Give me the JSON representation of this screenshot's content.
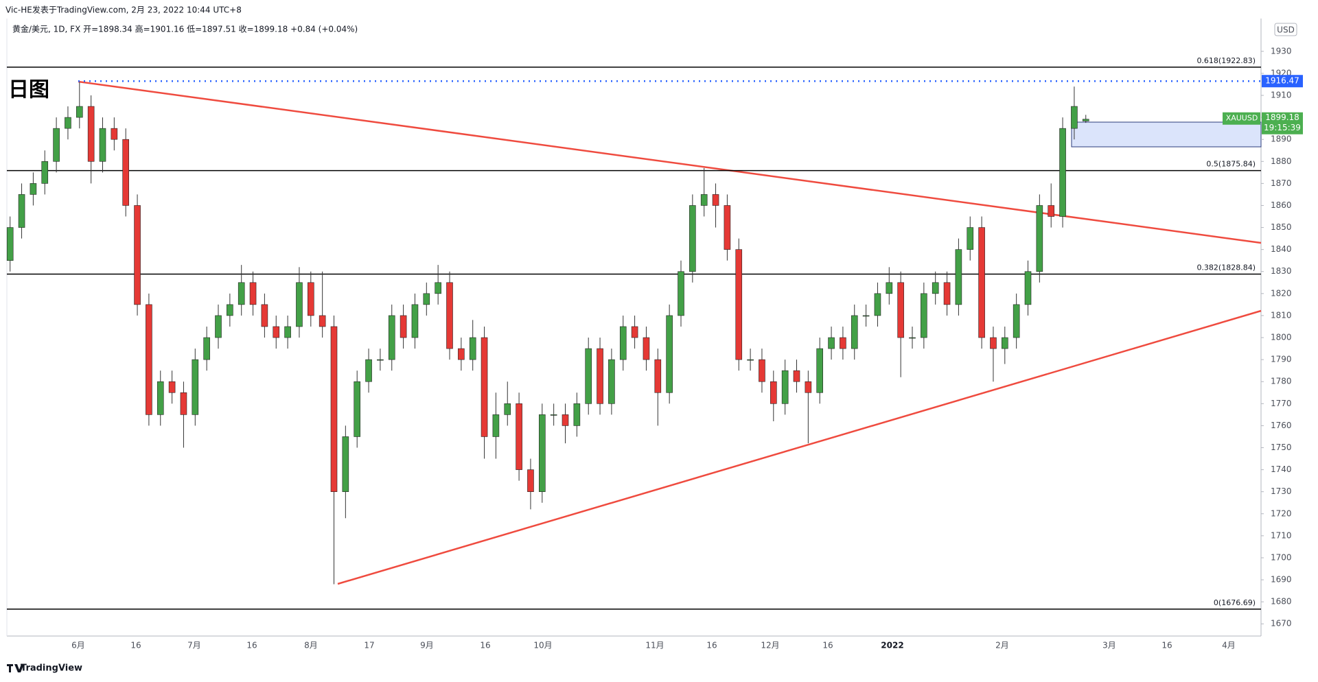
{
  "header": {
    "author_line": "Vic-HE发表于TradingView.com, 2月 23, 2022 10:44 UTC+8",
    "symbol_line": "黄金/美元, 1D, FX  开=1898.34 高=1901.16 低=1897.51 收=1899.18 +0.84 (+0.04%)"
  },
  "chart_data": {
    "type": "candlestick",
    "title": "日图",
    "currency": "USD",
    "up_color": "#43a047",
    "down_color": "#e53935",
    "open": [
      1835,
      1850,
      1865,
      1870,
      1880,
      1895,
      1900,
      1905,
      1880,
      1895,
      1890,
      1860,
      1815,
      1765,
      1780,
      1775,
      1765,
      1790,
      1800,
      1810,
      1815,
      1825,
      1815,
      1805,
      1800,
      1805,
      1825,
      1810,
      1805,
      1730,
      1755,
      1780,
      1790,
      1790,
      1810,
      1800,
      1815,
      1820,
      1825,
      1795,
      1790,
      1800,
      1755,
      1765,
      1770,
      1740,
      1730,
      1765,
      1765,
      1760,
      1770,
      1795,
      1770,
      1790,
      1805,
      1800,
      1790,
      1775,
      1810,
      1830,
      1860,
      1865,
      1860,
      1840,
      1790,
      1790,
      1780,
      1770,
      1785,
      1780,
      1775,
      1795,
      1800,
      1795,
      1810,
      1810,
      1820,
      1825,
      1800,
      1800,
      1820,
      1825,
      1815,
      1840,
      1850,
      1800,
      1795,
      1800,
      1815,
      1830,
      1860,
      1855,
      1895,
      1898.34
    ],
    "high": [
      1855,
      1870,
      1875,
      1885,
      1900,
      1905,
      1916,
      1910,
      1900,
      1900,
      1895,
      1865,
      1820,
      1785,
      1785,
      1780,
      1795,
      1805,
      1815,
      1820,
      1833,
      1830,
      1820,
      1810,
      1810,
      1832,
      1830,
      1830,
      1810,
      1760,
      1785,
      1795,
      1795,
      1815,
      1815,
      1820,
      1825,
      1833,
      1830,
      1800,
      1808,
      1805,
      1775,
      1780,
      1775,
      1745,
      1770,
      1770,
      1770,
      1775,
      1800,
      1800,
      1795,
      1810,
      1810,
      1805,
      1795,
      1815,
      1835,
      1865,
      1877,
      1870,
      1865,
      1845,
      1795,
      1795,
      1785,
      1790,
      1790,
      1785,
      1800,
      1805,
      1805,
      1815,
      1815,
      1825,
      1832,
      1830,
      1805,
      1825,
      1830,
      1830,
      1845,
      1855,
      1855,
      1805,
      1805,
      1820,
      1835,
      1865,
      1870,
      1900,
      1914,
      1901.16
    ],
    "low": [
      1830,
      1845,
      1860,
      1865,
      1875,
      1890,
      1895,
      1870,
      1875,
      1885,
      1855,
      1810,
      1760,
      1760,
      1770,
      1750,
      1760,
      1785,
      1795,
      1805,
      1810,
      1810,
      1800,
      1795,
      1795,
      1800,
      1805,
      1800,
      1688,
      1718,
      1750,
      1775,
      1785,
      1785,
      1795,
      1795,
      1810,
      1815,
      1790,
      1785,
      1785,
      1745,
      1745,
      1760,
      1735,
      1722,
      1725,
      1760,
      1752,
      1755,
      1765,
      1765,
      1765,
      1785,
      1795,
      1785,
      1760,
      1770,
      1805,
      1825,
      1855,
      1850,
      1835,
      1785,
      1785,
      1775,
      1762,
      1765,
      1775,
      1752,
      1770,
      1790,
      1790,
      1790,
      1805,
      1805,
      1815,
      1782,
      1795,
      1795,
      1815,
      1810,
      1810,
      1835,
      1795,
      1780,
      1788,
      1795,
      1810,
      1825,
      1850,
      1850,
      1890,
      1897.51
    ],
    "close": [
      1850,
      1865,
      1870,
      1880,
      1895,
      1900,
      1905,
      1880,
      1895,
      1890,
      1860,
      1815,
      1765,
      1780,
      1775,
      1765,
      1790,
      1800,
      1810,
      1815,
      1825,
      1815,
      1805,
      1800,
      1805,
      1825,
      1810,
      1805,
      1730,
      1755,
      1780,
      1790,
      1790,
      1810,
      1800,
      1815,
      1820,
      1825,
      1795,
      1790,
      1800,
      1755,
      1765,
      1770,
      1740,
      1730,
      1765,
      1765,
      1760,
      1770,
      1795,
      1770,
      1790,
      1805,
      1800,
      1790,
      1775,
      1810,
      1830,
      1860,
      1865,
      1860,
      1840,
      1790,
      1790,
      1780,
      1770,
      1785,
      1780,
      1775,
      1795,
      1800,
      1795,
      1810,
      1810,
      1820,
      1825,
      1800,
      1800,
      1820,
      1825,
      1815,
      1840,
      1850,
      1800,
      1795,
      1800,
      1815,
      1830,
      1860,
      1855,
      1895,
      1905,
      1899.18
    ],
    "ylim": [
      1665.4,
      1944.9
    ],
    "yticks": [
      1670,
      1680,
      1690,
      1700,
      1710,
      1720,
      1730,
      1740,
      1750,
      1760,
      1770,
      1780,
      1790,
      1800,
      1810,
      1820,
      1830,
      1840,
      1850,
      1860,
      1870,
      1880,
      1890,
      1900,
      1910,
      1920,
      1930
    ],
    "xtick_labels": [
      "6月",
      "16",
      "7月",
      "16",
      "8月",
      "17",
      "9月",
      "16",
      "10月",
      "11月",
      "16",
      "12月",
      "16",
      "2022",
      "2月",
      "3月",
      "16",
      "4月"
    ],
    "levels": [
      {
        "value": 1922.83,
        "label": "0.618(1922.83)"
      },
      {
        "value": 1875.84,
        "label": "0.5(1875.84)"
      },
      {
        "value": 1828.84,
        "label": "0.382(1828.84)"
      },
      {
        "value": 1676.69,
        "label": "0(1676.69)"
      }
    ],
    "marker": {
      "value": 1916.47,
      "color": "#2962ff"
    },
    "last_price": {
      "symbol": "XAUUSD",
      "value": 1899.18,
      "countdown": "19:15:39",
      "color": "#4caf50"
    }
  },
  "footer": {
    "brand": "TradingView"
  }
}
